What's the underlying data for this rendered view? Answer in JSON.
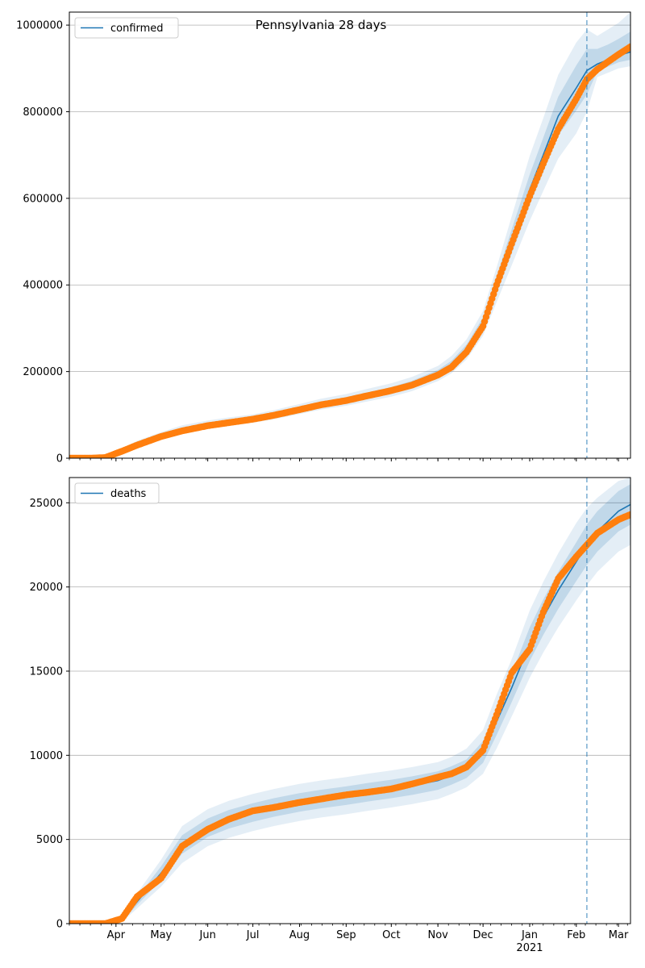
{
  "chart_data": [
    {
      "type": "line",
      "title": "Pennsylvania 28 days",
      "ylabel": "",
      "xlabel": "",
      "series": [
        {
          "name": "confirmed",
          "kind": "model",
          "color": "#1f77b4"
        }
      ],
      "legend": "top-left",
      "grid": "y",
      "ylim": [
        0,
        1030000
      ],
      "xlim": [
        "2020-03-01",
        "2021-03-09"
      ],
      "forecast_start": "2021-02-08",
      "yticks": [
        0,
        200000,
        400000,
        600000,
        800000,
        1000000
      ],
      "ytick_labels": [
        "0",
        "200000",
        "400000",
        "600000",
        "800000",
        "1000000"
      ],
      "model_curve": {
        "x": [
          "2020-03-01",
          "2020-03-15",
          "2020-03-25",
          "2020-04-05",
          "2020-04-15",
          "2020-05-01",
          "2020-05-15",
          "2020-06-01",
          "2020-06-15",
          "2020-07-01",
          "2020-07-15",
          "2020-08-01",
          "2020-08-15",
          "2020-09-01",
          "2020-09-15",
          "2020-10-01",
          "2020-10-15",
          "2020-11-01",
          "2020-11-10",
          "2020-11-20",
          "2020-12-01",
          "2020-12-10",
          "2020-12-20",
          "2021-01-01",
          "2021-01-10",
          "2021-01-20",
          "2021-02-01",
          "2021-02-08",
          "2021-02-15",
          "2021-02-22",
          "2021-03-01",
          "2021-03-09"
        ],
        "y": [
          0,
          0,
          2000,
          18000,
          33000,
          52000,
          66000,
          77000,
          84000,
          91000,
          100000,
          113000,
          124000,
          134000,
          145000,
          157000,
          171000,
          195000,
          215000,
          250000,
          310000,
          400000,
          500000,
          620000,
          700000,
          790000,
          855000,
          895000,
          910000,
          920000,
          930000,
          938000
        ]
      },
      "observed": {
        "name": "observed confirmed",
        "color": "#ff7f0e",
        "x": [
          "2020-03-01",
          "2020-03-15",
          "2020-03-25",
          "2020-04-05",
          "2020-04-15",
          "2020-05-01",
          "2020-05-15",
          "2020-06-01",
          "2020-06-15",
          "2020-07-01",
          "2020-07-15",
          "2020-08-01",
          "2020-08-15",
          "2020-09-01",
          "2020-09-15",
          "2020-10-01",
          "2020-10-15",
          "2020-11-01",
          "2020-11-10",
          "2020-11-20",
          "2020-12-01",
          "2020-12-10",
          "2020-12-20",
          "2021-01-01",
          "2021-01-10",
          "2021-01-20",
          "2021-02-01",
          "2021-02-08",
          "2021-02-15",
          "2021-02-22",
          "2021-03-01",
          "2021-03-09"
        ],
        "y": [
          0,
          0,
          1500,
          16000,
          30000,
          50000,
          63000,
          75000,
          82000,
          90000,
          99000,
          112000,
          123000,
          133000,
          144000,
          156000,
          169000,
          192000,
          210000,
          245000,
          305000,
          400000,
          495000,
          605000,
          680000,
          760000,
          830000,
          875000,
          898000,
          915000,
          932000,
          950000
        ]
      },
      "bands": [
        {
          "lower": [
            0,
            0,
            1000,
            14000,
            27000,
            45000,
            57000,
            68000,
            75000,
            82000,
            90000,
            102000,
            112000,
            121000,
            131000,
            142000,
            155000,
            178000,
            196000,
            228000,
            283000,
            360000,
            445000,
            548000,
            617000,
            692000,
            750000,
            800000,
            880000,
            890000,
            900000,
            905000
          ],
          "upper": [
            0,
            0,
            3000,
            23000,
            40000,
            60000,
            76000,
            87000,
            94000,
            101000,
            111000,
            125000,
            137000,
            148000,
            160000,
            173000,
            188000,
            213000,
            236000,
            274000,
            340000,
            440000,
            558000,
            698000,
            785000,
            885000,
            960000,
            990000,
            975000,
            990000,
            1005000,
            1030000
          ]
        },
        {
          "lower": [
            0,
            0,
            1400,
            16000,
            30000,
            48000,
            61000,
            72000,
            79000,
            86000,
            95000,
            107000,
            118000,
            127000,
            138000,
            150000,
            163000,
            186000,
            205000,
            238000,
            295000,
            380000,
            472000,
            585000,
            660000,
            745000,
            803000,
            840000,
            893000,
            904000,
            914000,
            920000
          ],
          "upper": [
            0,
            0,
            2600,
            20000,
            36000,
            56000,
            71000,
            82000,
            89000,
            96000,
            106000,
            119000,
            131000,
            141000,
            152000,
            164000,
            179000,
            204000,
            225000,
            262000,
            325000,
            420000,
            528000,
            655000,
            740000,
            835000,
            907000,
            945000,
            945000,
            955000,
            968000,
            985000
          ]
        }
      ]
    },
    {
      "type": "line",
      "title": "",
      "ylabel": "",
      "xlabel": "",
      "series": [
        {
          "name": "deaths",
          "kind": "model",
          "color": "#1f77b4"
        }
      ],
      "legend": "top-left",
      "grid": "y",
      "ylim": [
        0,
        26500
      ],
      "xlim": [
        "2020-03-01",
        "2021-03-09"
      ],
      "forecast_start": "2021-02-08",
      "yticks": [
        0,
        5000,
        10000,
        15000,
        20000,
        25000
      ],
      "ytick_labels": [
        "0",
        "5000",
        "10000",
        "15000",
        "20000",
        "25000"
      ],
      "xticks": [
        "2020-04-01",
        "2020-05-01",
        "2020-06-01",
        "2020-07-01",
        "2020-08-01",
        "2020-09-01",
        "2020-10-01",
        "2020-11-01",
        "2020-12-01",
        "2021-01-01",
        "2021-02-01",
        "2021-03-01"
      ],
      "xtick_labels": [
        "Apr",
        "May",
        "Jun",
        "Jul",
        "Aug",
        "Sep",
        "Oct",
        "Nov",
        "Dec",
        "Jan",
        "Feb",
        "Mar"
      ],
      "xtick_year_label": "2021",
      "model_curve": {
        "x": [
          "2020-03-01",
          "2020-03-15",
          "2020-03-25",
          "2020-04-05",
          "2020-04-15",
          "2020-05-01",
          "2020-05-15",
          "2020-06-01",
          "2020-06-15",
          "2020-07-01",
          "2020-07-15",
          "2020-08-01",
          "2020-08-15",
          "2020-09-01",
          "2020-09-15",
          "2020-10-01",
          "2020-10-15",
          "2020-11-01",
          "2020-11-10",
          "2020-11-20",
          "2020-12-01",
          "2020-12-10",
          "2020-12-20",
          "2021-01-01",
          "2021-01-10",
          "2021-01-20",
          "2021-02-01",
          "2021-02-08",
          "2021-02-15",
          "2021-02-22",
          "2021-03-01",
          "2021-03-09"
        ],
        "y": [
          0,
          0,
          0,
          200,
          1300,
          3000,
          4700,
          5700,
          6200,
          6600,
          6900,
          7200,
          7400,
          7600,
          7800,
          8000,
          8200,
          8500,
          8800,
          9200,
          10200,
          12000,
          14000,
          16600,
          18200,
          19800,
          21500,
          22500,
          23300,
          23900,
          24500,
          24900
        ]
      },
      "observed": {
        "name": "observed deaths",
        "color": "#ff7f0e",
        "x": [
          "2020-03-01",
          "2020-03-15",
          "2020-03-25",
          "2020-04-05",
          "2020-04-15",
          "2020-05-01",
          "2020-05-15",
          "2020-06-01",
          "2020-06-15",
          "2020-07-01",
          "2020-07-15",
          "2020-08-01",
          "2020-08-15",
          "2020-09-01",
          "2020-09-15",
          "2020-10-01",
          "2020-10-15",
          "2020-11-01",
          "2020-11-10",
          "2020-11-20",
          "2020-12-01",
          "2020-12-10",
          "2020-12-20",
          "2021-01-01",
          "2021-01-10",
          "2021-01-20",
          "2021-02-01",
          "2021-02-08",
          "2021-02-15",
          "2021-02-22",
          "2021-03-01",
          "2021-03-09"
        ],
        "y": [
          0,
          0,
          0,
          300,
          1600,
          2700,
          4600,
          5600,
          6200,
          6700,
          6900,
          7200,
          7400,
          7650,
          7800,
          8000,
          8300,
          8700,
          8900,
          9300,
          10300,
          12400,
          14900,
          16300,
          18500,
          20500,
          21800,
          22500,
          23200,
          23600,
          24000,
          24300
        ]
      },
      "bands": [
        {
          "lower": [
            0,
            0,
            0,
            100,
            900,
            2200,
            3600,
            4600,
            5100,
            5500,
            5800,
            6100,
            6300,
            6500,
            6700,
            6900,
            7100,
            7400,
            7700,
            8100,
            8900,
            10400,
            12300,
            14600,
            16100,
            17600,
            19200,
            20100,
            20900,
            21500,
            22100,
            22500
          ],
          "upper": [
            0,
            0,
            0,
            350,
            1800,
            3800,
            5800,
            6800,
            7300,
            7700,
            8000,
            8300,
            8500,
            8700,
            8900,
            9100,
            9300,
            9600,
            9900,
            10400,
            11500,
            13600,
            15700,
            18600,
            20300,
            22000,
            23800,
            24700,
            25300,
            25800,
            26300,
            26500
          ]
        },
        {
          "lower": [
            0,
            0,
            0,
            150,
            1100,
            2600,
            4150,
            5150,
            5650,
            6050,
            6350,
            6650,
            6850,
            7050,
            7250,
            7450,
            7650,
            7950,
            8250,
            8650,
            9550,
            11200,
            13150,
            15600,
            17150,
            18700,
            20350,
            21300,
            22100,
            22700,
            23300,
            23700
          ],
          "upper": [
            0,
            0,
            0,
            260,
            1550,
            3400,
            5250,
            6250,
            6750,
            7150,
            7450,
            7750,
            7950,
            8150,
            8350,
            8550,
            8750,
            9050,
            9350,
            9750,
            10850,
            12800,
            14850,
            17600,
            19250,
            20900,
            22650,
            23700,
            24500,
            25100,
            25700,
            26100
          ]
        }
      ]
    }
  ]
}
